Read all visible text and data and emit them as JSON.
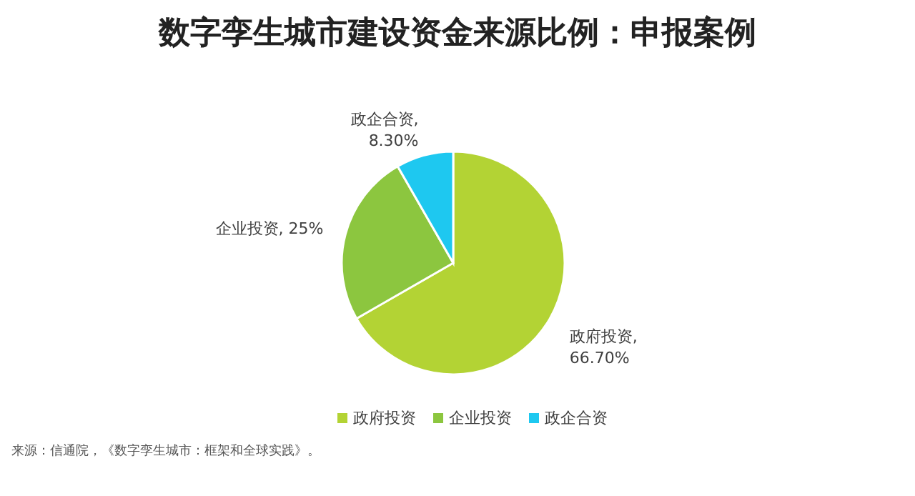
{
  "chart_data": {
    "type": "pie",
    "title": "数字孪生城市建设资金来源比例：申报案例",
    "categories": [
      "政府投资",
      "企业投资",
      "政企合资"
    ],
    "values": [
      66.7,
      25,
      8.3
    ],
    "value_labels": [
      "政府投资, 66.70%",
      "企业投资, 25%",
      "政企合资, 8.30%"
    ],
    "colors": [
      "#b3d334",
      "#8cc63f",
      "#1ec8f0"
    ],
    "legend": "bottom",
    "annotations": [
      "来源：信通院，《数字孪生城市：框架和全球实践》。"
    ]
  }
}
